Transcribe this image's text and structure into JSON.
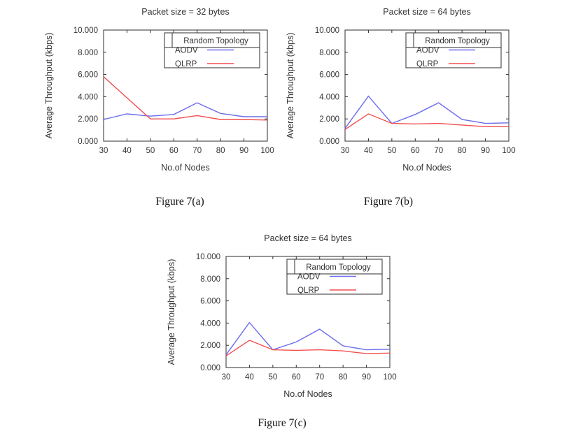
{
  "page": {
    "background": "#ffffff"
  },
  "colors": {
    "aodv_line": "#6b6bee",
    "qlrp_line": "#f34f4f",
    "axis": "#2e2e2e",
    "text": "#343434"
  },
  "captions": [
    {
      "label": "Figure 7(a)"
    },
    {
      "label": "Figure 7(b)"
    },
    {
      "label": "Figure 7(c)"
    }
  ],
  "chart_data": [
    {
      "type": "line",
      "title": "Packet size = 32 bytes",
      "xlabel": "No.of Nodes",
      "ylabel": "Average Throughput (kbps)",
      "legend_title": "Random Topology",
      "legend_position": "top-right",
      "grid": false,
      "x": [
        30,
        40,
        50,
        60,
        70,
        80,
        90,
        100
      ],
      "xlim": [
        30,
        100
      ],
      "ylim": [
        0,
        10
      ],
      "xticks": [
        "30",
        "40",
        "50",
        "60",
        "70",
        "80",
        "90",
        "100"
      ],
      "yticks": [
        "0.000",
        "2.000",
        "4.000",
        "6.000",
        "8.000",
        "10.000"
      ],
      "series": [
        {
          "name": "AODV",
          "color": "#6b6bee",
          "values": [
            1.95,
            2.45,
            2.25,
            2.4,
            3.45,
            2.5,
            2.2,
            2.2
          ]
        },
        {
          "name": "QLRP",
          "color": "#f34f4f",
          "values": [
            5.8,
            3.9,
            2.0,
            2.0,
            2.3,
            1.95,
            1.95,
            1.9
          ]
        }
      ]
    },
    {
      "type": "line",
      "title": "Packet size = 64 bytes",
      "xlabel": "No.of Nodes",
      "ylabel": "Average Throughput (kbps)",
      "legend_title": "Random Topology",
      "legend_position": "top-right",
      "grid": false,
      "x": [
        30,
        40,
        50,
        60,
        70,
        80,
        90,
        100
      ],
      "xlim": [
        30,
        100
      ],
      "ylim": [
        0,
        10
      ],
      "xticks": [
        "30",
        "40",
        "50",
        "60",
        "70",
        "80",
        "90",
        "100"
      ],
      "yticks": [
        "0.000",
        "2.000",
        "4.000",
        "6.000",
        "8.000",
        "10.000"
      ],
      "series": [
        {
          "name": "AODV",
          "color": "#6b6bee",
          "values": [
            1.15,
            4.05,
            1.6,
            2.4,
            3.45,
            1.95,
            1.6,
            1.65
          ]
        },
        {
          "name": "QLRP",
          "color": "#f34f4f",
          "values": [
            1.05,
            2.45,
            1.6,
            1.55,
            1.6,
            1.45,
            1.3,
            1.3
          ]
        }
      ]
    },
    {
      "type": "line",
      "title": "Packet size = 64 bytes",
      "xlabel": "No.of Nodes",
      "ylabel": "Average Throughput (kbps)",
      "legend_title": "Random Topology",
      "legend_position": "top-right",
      "grid": false,
      "x": [
        30,
        40,
        50,
        60,
        70,
        80,
        90,
        100
      ],
      "xlim": [
        30,
        100
      ],
      "ylim": [
        0,
        10
      ],
      "xticks": [
        "30",
        "40",
        "50",
        "60",
        "70",
        "80",
        "90",
        "100"
      ],
      "yticks": [
        "0.000",
        "2.000",
        "4.000",
        "6.000",
        "8.000",
        "10.000"
      ],
      "series": [
        {
          "name": "AODV",
          "color": "#6b6bee",
          "values": [
            1.15,
            4.05,
            1.6,
            2.3,
            3.45,
            1.95,
            1.6,
            1.65
          ]
        },
        {
          "name": "QLRP",
          "color": "#f34f4f",
          "values": [
            1.05,
            2.45,
            1.6,
            1.55,
            1.6,
            1.5,
            1.25,
            1.3
          ]
        }
      ]
    }
  ]
}
